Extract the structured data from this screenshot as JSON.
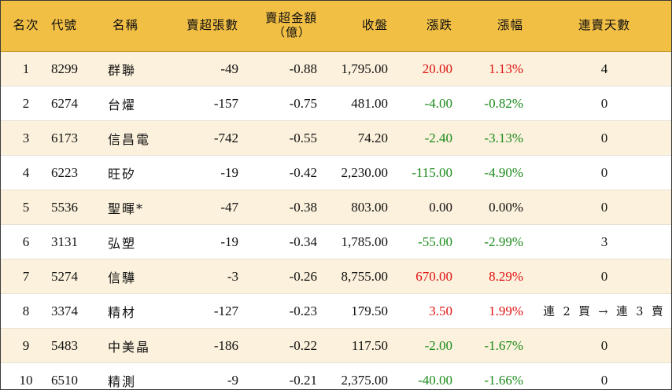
{
  "colors": {
    "header_bg": "#f2bf45",
    "row_alt_bg": "#fbf1dc",
    "up": "#e01010",
    "down": "#1a8a1a",
    "neutral": "#111111"
  },
  "headers": {
    "rank": "名次",
    "code": "代號",
    "name": "名稱",
    "net_sell_lots": "賣超張數",
    "net_sell_amount_l1": "賣超金額",
    "net_sell_amount_l2": "（億）",
    "close": "收盤",
    "change": "漲跌",
    "change_pct": "漲幅",
    "streak_days": "連賣天數"
  },
  "rows": [
    {
      "rank": "1",
      "code": "8299",
      "name": "群聯",
      "lots": "-49",
      "amount": "-0.88",
      "close": "1,795.00",
      "change": "20.00",
      "pct": "1.13%",
      "dir": "up",
      "streak": "4"
    },
    {
      "rank": "2",
      "code": "6274",
      "name": "台燿",
      "lots": "-157",
      "amount": "-0.75",
      "close": "481.00",
      "change": "-4.00",
      "pct": "-0.82%",
      "dir": "down",
      "streak": "0"
    },
    {
      "rank": "3",
      "code": "6173",
      "name": "信昌電",
      "lots": "-742",
      "amount": "-0.55",
      "close": "74.20",
      "change": "-2.40",
      "pct": "-3.13%",
      "dir": "down",
      "streak": "0"
    },
    {
      "rank": "4",
      "code": "6223",
      "name": "旺矽",
      "lots": "-19",
      "amount": "-0.42",
      "close": "2,230.00",
      "change": "-115.00",
      "pct": "-4.90%",
      "dir": "down",
      "streak": "0"
    },
    {
      "rank": "5",
      "code": "5536",
      "name": "聖暉*",
      "lots": "-47",
      "amount": "-0.38",
      "close": "803.00",
      "change": "0.00",
      "pct": "0.00%",
      "dir": "flat",
      "streak": "0"
    },
    {
      "rank": "6",
      "code": "3131",
      "name": "弘塑",
      "lots": "-19",
      "amount": "-0.34",
      "close": "1,785.00",
      "change": "-55.00",
      "pct": "-2.99%",
      "dir": "down",
      "streak": "3"
    },
    {
      "rank": "7",
      "code": "5274",
      "name": "信驊",
      "lots": "-3",
      "amount": "-0.26",
      "close": "8,755.00",
      "change": "670.00",
      "pct": "8.29%",
      "dir": "up",
      "streak": "0"
    },
    {
      "rank": "8",
      "code": "3374",
      "name": "精材",
      "lots": "-127",
      "amount": "-0.23",
      "close": "179.50",
      "change": "3.50",
      "pct": "1.99%",
      "dir": "up",
      "streak": "連 2 買 → 連 3 賣"
    },
    {
      "rank": "9",
      "code": "5483",
      "name": "中美晶",
      "lots": "-186",
      "amount": "-0.22",
      "close": "117.50",
      "change": "-2.00",
      "pct": "-1.67%",
      "dir": "down",
      "streak": "0"
    },
    {
      "rank": "10",
      "code": "6510",
      "name": "精測",
      "lots": "-9",
      "amount": "-0.21",
      "close": "2,375.00",
      "change": "-40.00",
      "pct": "-1.66%",
      "dir": "down",
      "streak": "0"
    }
  ]
}
